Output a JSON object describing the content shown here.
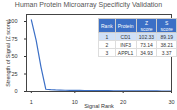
{
  "chart_data": {
    "type": "line",
    "title": "Human Protein Microarray Specificity Validation",
    "x_label": "Signal Rank",
    "y_label": "Strength of Signal (Z score)",
    "x": [
      1,
      2,
      3,
      4,
      5,
      6,
      7,
      8,
      9,
      10,
      11,
      12,
      13,
      14,
      15,
      16,
      17,
      18,
      19,
      20,
      21,
      22,
      23,
      24,
      25,
      26,
      27,
      28,
      29,
      30
    ],
    "values": [
      102.33,
      73.14,
      34.93,
      3.2,
      2.6,
      2.2,
      2.0,
      1.8,
      1.7,
      1.6,
      1.5,
      1.4,
      1.35,
      1.3,
      1.25,
      1.2,
      1.15,
      1.1,
      1.05,
      1.0,
      0.95,
      0.9,
      0.88,
      0.85,
      0.82,
      0.8,
      0.78,
      0.75,
      0.72,
      0.7
    ],
    "color": "#3b6fc6",
    "xlim": [
      0,
      30
    ],
    "xticks": [
      1,
      10,
      20,
      30
    ],
    "ylim": [
      0,
      110
    ],
    "yticks": [
      0,
      25,
      50,
      75,
      100
    ],
    "grid": false,
    "table": {
      "columns": [
        "Rank",
        "Protein",
        "Z score",
        "S score"
      ],
      "rows": [
        [
          1,
          "CD1",
          102.33,
          89.19
        ],
        [
          2,
          "INF3",
          73.14,
          38.21
        ],
        [
          3,
          "APPL1",
          34.93,
          3.37
        ]
      ]
    }
  }
}
